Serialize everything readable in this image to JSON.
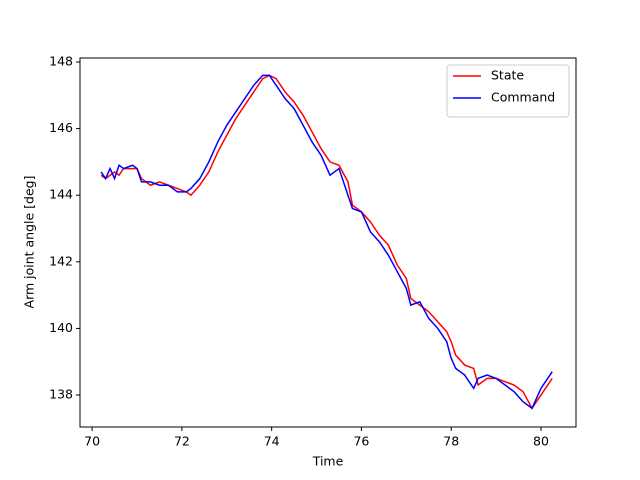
{
  "chart_data": {
    "type": "line",
    "xlabel": "Time",
    "ylabel": "Arm joint angle [deg]",
    "x": [
      70.2,
      70.3,
      70.4,
      70.5,
      70.6,
      70.7,
      70.9,
      71.0,
      71.1,
      71.3,
      71.5,
      71.7,
      71.9,
      72.1,
      72.2,
      72.4,
      72.6,
      72.8,
      73.0,
      73.2,
      73.4,
      73.6,
      73.8,
      73.95,
      74.1,
      74.3,
      74.5,
      74.7,
      74.9,
      75.1,
      75.3,
      75.5,
      75.7,
      75.8,
      76.0,
      76.2,
      76.4,
      76.6,
      76.8,
      77.0,
      77.1,
      77.3,
      77.5,
      77.7,
      77.9,
      78.0,
      78.1,
      78.3,
      78.5,
      78.6,
      78.8,
      79.0,
      79.2,
      79.4,
      79.6,
      79.8,
      80.0,
      80.25
    ],
    "series": [
      {
        "name": "State",
        "color": "#ff0000",
        "values": [
          144.6,
          144.5,
          144.6,
          144.7,
          144.6,
          144.8,
          144.8,
          144.8,
          144.5,
          144.3,
          144.4,
          144.3,
          144.2,
          144.1,
          144.0,
          144.3,
          144.7,
          145.3,
          145.8,
          146.3,
          146.7,
          147.1,
          147.5,
          147.6,
          147.5,
          147.1,
          146.8,
          146.4,
          145.9,
          145.4,
          145.0,
          144.9,
          144.4,
          143.7,
          143.5,
          143.2,
          142.8,
          142.5,
          141.9,
          141.5,
          140.9,
          140.7,
          140.5,
          140.2,
          139.9,
          139.6,
          139.2,
          138.9,
          138.8,
          138.3,
          138.5,
          138.5,
          138.4,
          138.3,
          138.1,
          137.6,
          138.0,
          138.5
        ]
      },
      {
        "name": "Command",
        "color": "#0000ff",
        "values": [
          144.7,
          144.5,
          144.8,
          144.5,
          144.9,
          144.8,
          144.9,
          144.8,
          144.4,
          144.4,
          144.3,
          144.3,
          144.1,
          144.1,
          144.2,
          144.5,
          145.0,
          145.6,
          146.1,
          146.5,
          146.9,
          147.3,
          147.6,
          147.6,
          147.3,
          146.9,
          146.6,
          146.1,
          145.6,
          145.2,
          144.6,
          144.8,
          144.0,
          143.6,
          143.5,
          142.9,
          142.6,
          142.2,
          141.7,
          141.2,
          140.7,
          140.8,
          140.3,
          140.0,
          139.6,
          139.1,
          138.8,
          138.6,
          138.2,
          138.5,
          138.6,
          138.5,
          138.3,
          138.1,
          137.8,
          137.6,
          138.2,
          138.7
        ]
      }
    ],
    "xlim": [
      69.73,
      80.78
    ],
    "ylim": [
      137.04,
      148.12
    ],
    "xticks": [
      70,
      72,
      74,
      76,
      78,
      80
    ],
    "yticks": [
      138,
      140,
      142,
      144,
      146,
      148
    ],
    "legend": "upper right"
  }
}
